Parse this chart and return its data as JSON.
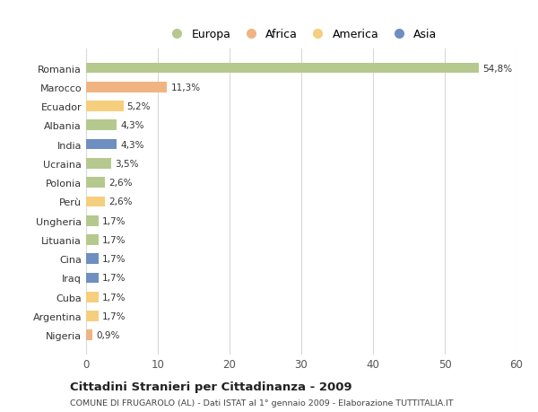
{
  "countries": [
    "Romania",
    "Marocco",
    "Ecuador",
    "Albania",
    "India",
    "Ucraina",
    "Polonia",
    "Perù",
    "Ungheria",
    "Lituania",
    "Cina",
    "Iraq",
    "Cuba",
    "Argentina",
    "Nigeria"
  ],
  "values": [
    54.8,
    11.3,
    5.2,
    4.3,
    4.3,
    3.5,
    2.6,
    2.6,
    1.7,
    1.7,
    1.7,
    1.7,
    1.7,
    1.7,
    0.9
  ],
  "labels": [
    "54,8%",
    "11,3%",
    "5,2%",
    "4,3%",
    "4,3%",
    "3,5%",
    "2,6%",
    "2,6%",
    "1,7%",
    "1,7%",
    "1,7%",
    "1,7%",
    "1,7%",
    "1,7%",
    "0,9%"
  ],
  "colors": [
    "#b5c98e",
    "#f0b482",
    "#f5ce7e",
    "#b5c98e",
    "#6e8fc0",
    "#b5c98e",
    "#b5c98e",
    "#f5ce7e",
    "#b5c98e",
    "#b5c98e",
    "#6e8fc0",
    "#6e8fc0",
    "#f5ce7e",
    "#f5ce7e",
    "#f0b482"
  ],
  "legend_labels": [
    "Europa",
    "Africa",
    "America",
    "Asia"
  ],
  "legend_colors": [
    "#b5c98e",
    "#f0b482",
    "#f5ce7e",
    "#6e8fc0"
  ],
  "title": "Cittadini Stranieri per Cittadinanza - 2009",
  "subtitle": "COMUNE DI FRUGAROLO (AL) - Dati ISTAT al 1° gennaio 2009 - Elaborazione TUTTITALIA.IT",
  "xlim": [
    0,
    60
  ],
  "xticks": [
    0,
    10,
    20,
    30,
    40,
    50,
    60
  ],
  "background_color": "#ffffff",
  "grid_color": "#d8d8d8"
}
